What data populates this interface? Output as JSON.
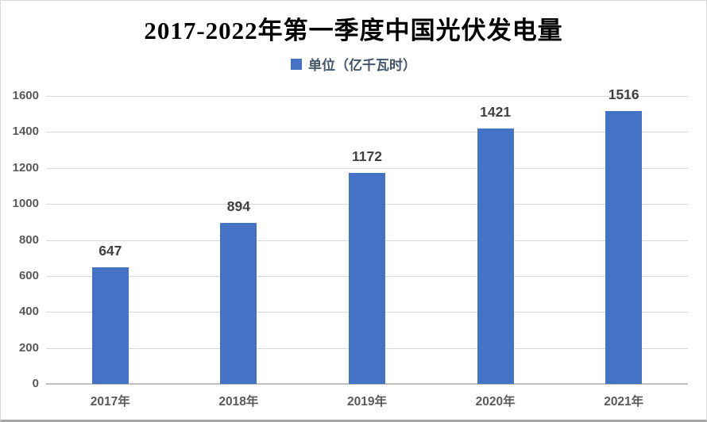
{
  "title": "2017-2022年第一季度中国光伏发电量",
  "legend": {
    "label": "单位（亿千瓦时）",
    "marker": "blue-square"
  },
  "chart_data": {
    "type": "bar",
    "title": "2017-2022年第一季度中国光伏发电量",
    "categories": [
      "2017年",
      "2018年",
      "2019年",
      "2020年",
      "2021年"
    ],
    "values": [
      647,
      894,
      1172,
      1421,
      1516
    ],
    "series_name": "单位（亿千瓦时）",
    "xlabel": "",
    "ylabel": "",
    "ylim": [
      0,
      1600
    ],
    "ytick_step": 200,
    "yticks": [
      0,
      200,
      400,
      600,
      800,
      1000,
      1200,
      1400,
      1600
    ],
    "grid": true,
    "legend_position": "top",
    "data_labels": true
  },
  "colors": {
    "bar": "#4472C4",
    "gridline": "#D9D9D9",
    "axis_line": "#BFBFBF",
    "title_text": "#000000",
    "legend_text": "#44546A",
    "data_label_text": "#404040",
    "axis_label_text": "#595959",
    "background": "#FFFFFF",
    "border": "#D9D9D9"
  }
}
